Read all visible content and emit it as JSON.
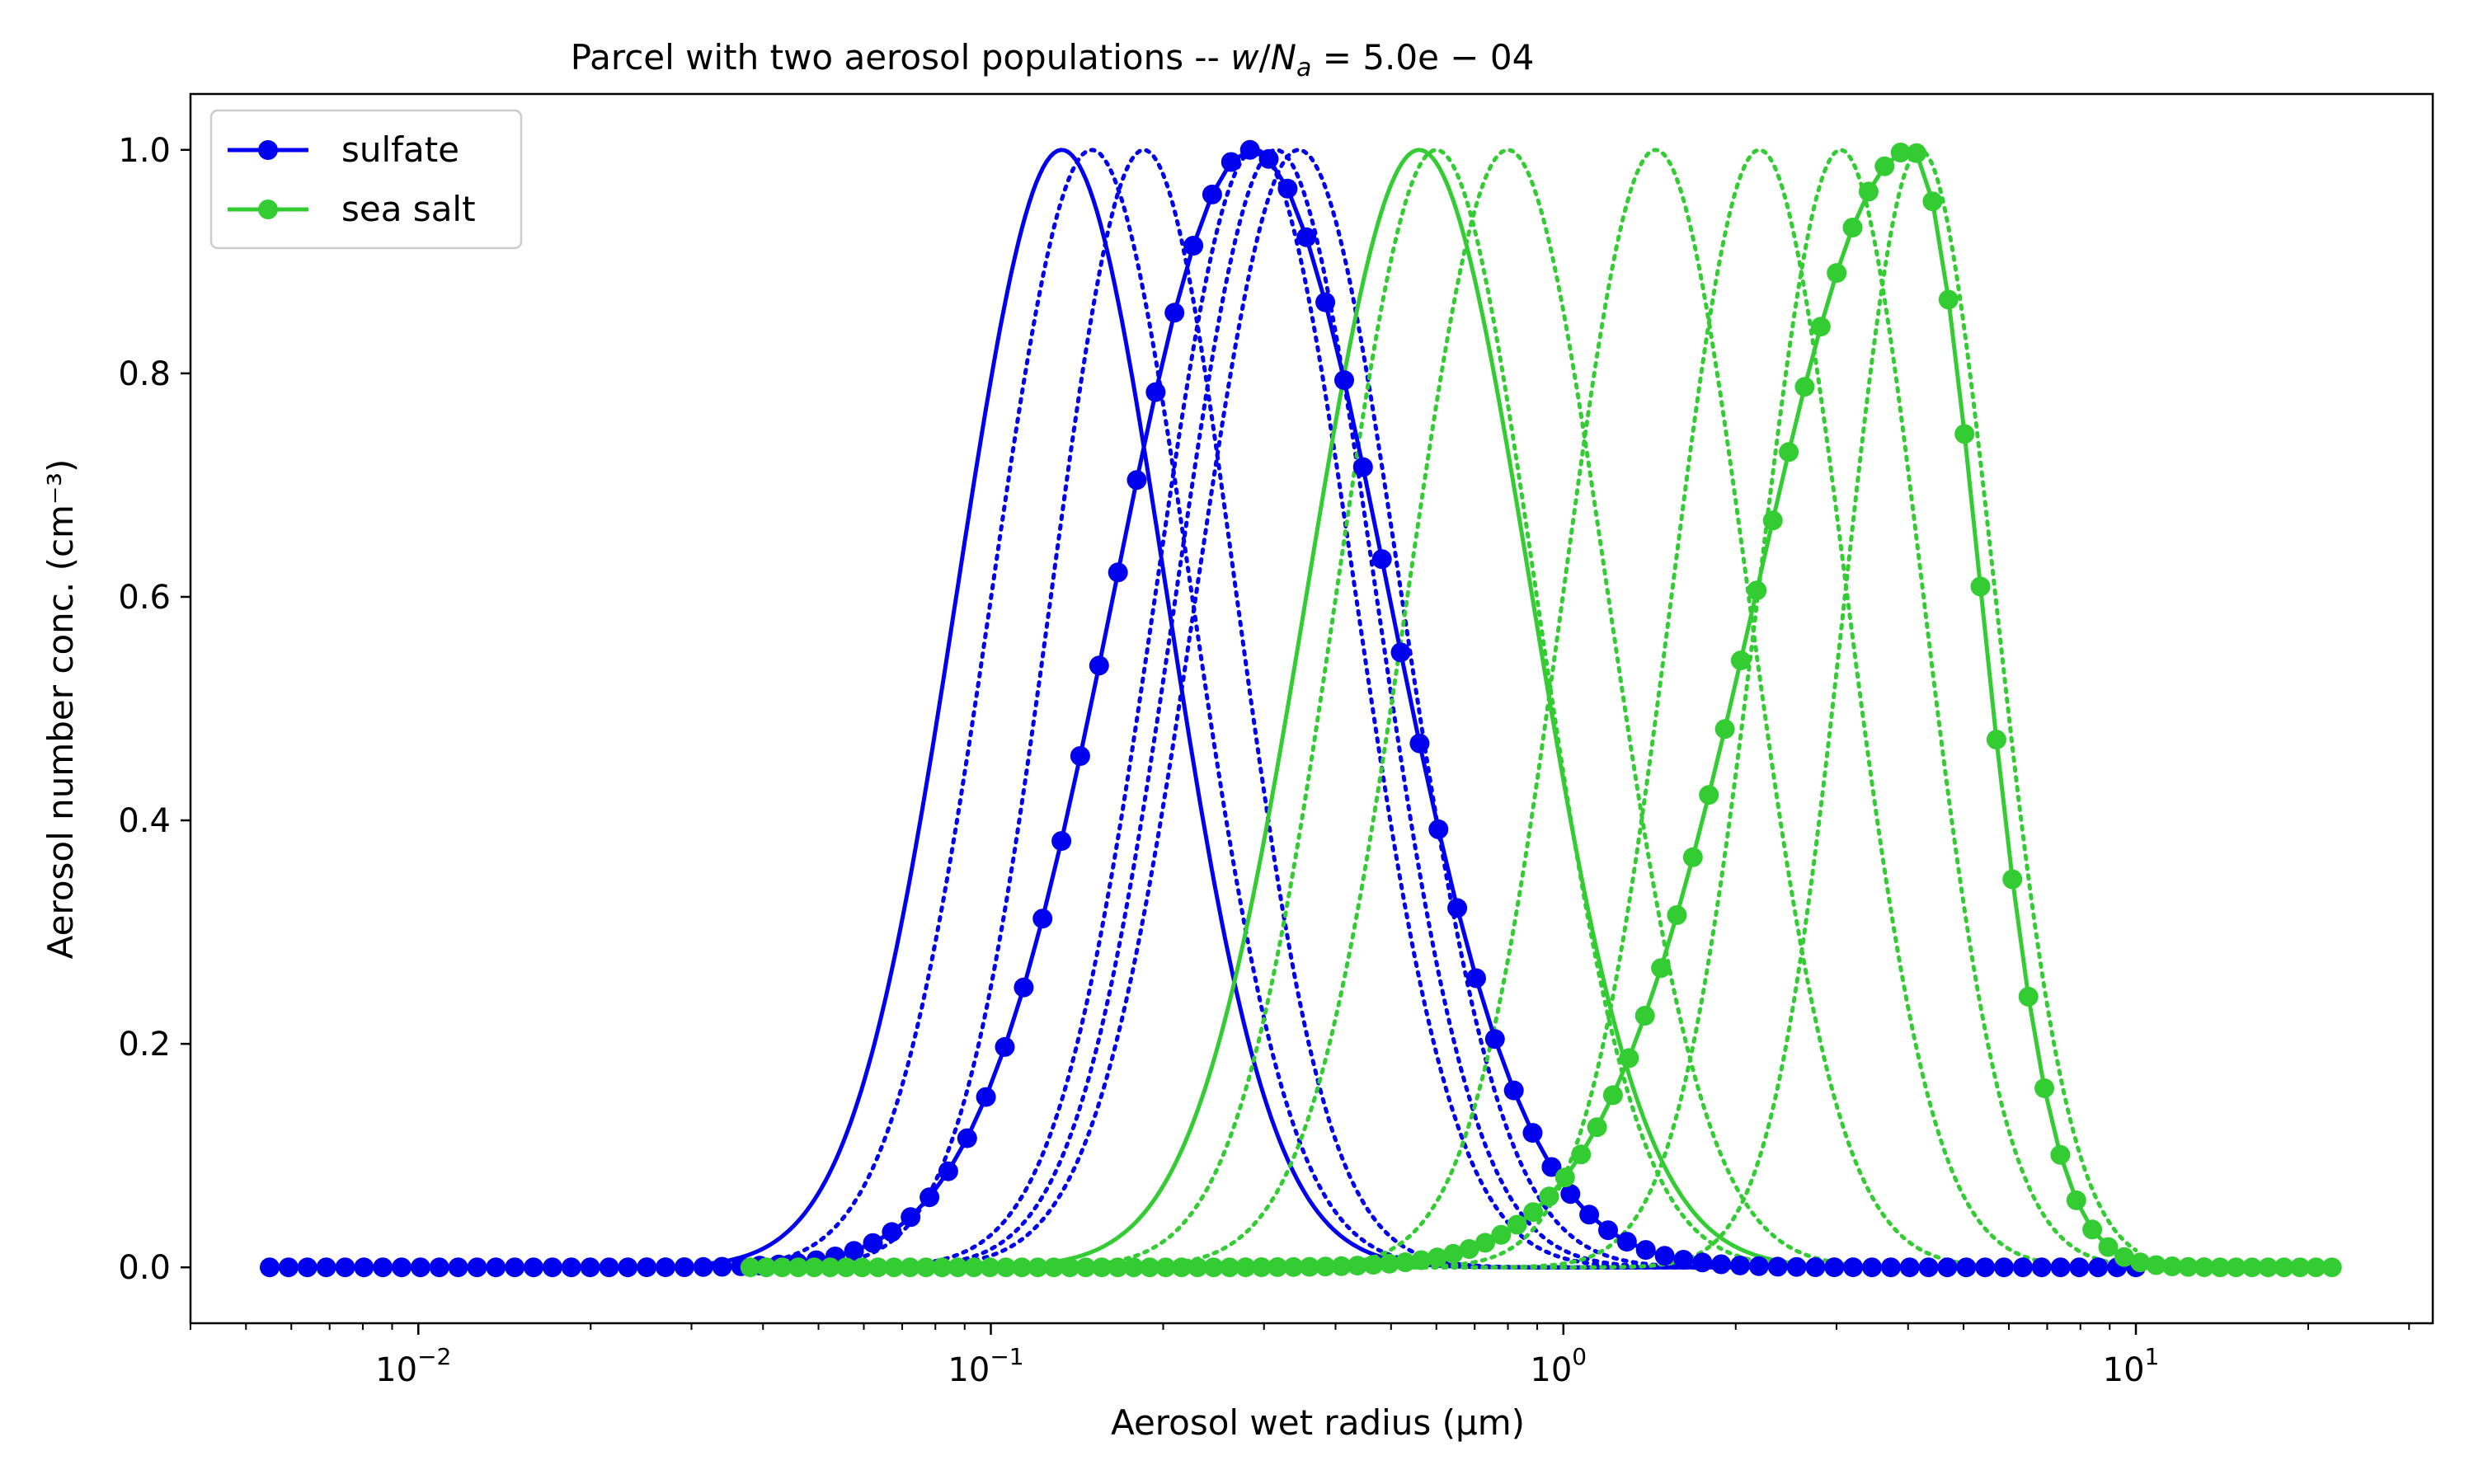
{
  "chart_data": {
    "type": "line",
    "title_prefix": "Parcel with two aerosol populations -- ",
    "title_math": {
      "var1": "w",
      "slash": "/",
      "var2": "N",
      "sub": "a",
      "rest": " = 5.0e − 04"
    },
    "xlabel": "Aerosol wet radius (μm)",
    "ylabel": "Aerosol number conc. (cm⁻³)",
    "xscale": "log",
    "xlim": [
      0.004,
      33
    ],
    "ylim": [
      -0.05,
      1.05
    ],
    "yticks": [
      0.0,
      0.2,
      0.4,
      0.6,
      0.8,
      1.0
    ],
    "ytick_labels": [
      "0.0",
      "0.2",
      "0.4",
      "0.6",
      "0.8",
      "1.0"
    ],
    "xticks": [
      {
        "value": 0.01,
        "base": "10",
        "exp": "−2"
      },
      {
        "value": 0.1,
        "base": "10",
        "exp": "−1"
      },
      {
        "value": 1,
        "base": "10",
        "exp": "0"
      },
      {
        "value": 10,
        "base": "10",
        "exp": "1"
      }
    ],
    "legend": {
      "position": "top-left"
    },
    "series": [
      {
        "name": "sulfate",
        "color": "#0000ee",
        "style": "solid-markers",
        "peak_x": 0.285,
        "sigma": 0.55,
        "tail": 0.0,
        "xmin": 0.0055,
        "xmax": 10.0,
        "points": 100
      },
      {
        "name": "sea salt",
        "color": "#33cc33",
        "style": "solid-markers",
        "peak_x": 4.05,
        "sigma": 0.62,
        "sigma_right": 0.28,
        "xmin": 0.038,
        "xmax": 22,
        "points": 100
      }
    ],
    "unlabeled_lines": [
      {
        "group": "sulfate",
        "color": "#0000ee",
        "style": "solid",
        "peak_x": 0.133,
        "sigma": 0.42,
        "xmin": 0.032,
        "xmax": 10
      },
      {
        "group": "sulfate",
        "color": "#0000ee",
        "style": "dotted",
        "peak_x": 0.15,
        "sigma": 0.4,
        "xmin": 0.032,
        "xmax": 10
      },
      {
        "group": "sulfate",
        "color": "#0000ee",
        "style": "dotted",
        "peak_x": 0.185,
        "sigma": 0.37,
        "xmin": 0.032,
        "xmax": 10
      },
      {
        "group": "sulfate",
        "color": "#0000ee",
        "style": "dotted",
        "peak_x": 0.29,
        "sigma": 0.4,
        "xmin": 0.032,
        "xmax": 10
      },
      {
        "group": "sulfate",
        "color": "#0000ee",
        "style": "dotted",
        "peak_x": 0.315,
        "sigma": 0.4,
        "xmin": 0.032,
        "xmax": 10
      },
      {
        "group": "sulfate",
        "color": "#0000ee",
        "style": "dotted",
        "peak_x": 0.345,
        "sigma": 0.41,
        "xmin": 0.032,
        "xmax": 10
      },
      {
        "group": "sea salt",
        "color": "#33cc33",
        "style": "solid",
        "peak_x": 0.56,
        "sigma": 0.45,
        "xmin": 0.038,
        "xmax": 10
      },
      {
        "group": "sea salt",
        "color": "#33cc33",
        "style": "dotted",
        "peak_x": 0.6,
        "sigma": 0.4,
        "xmin": 0.038,
        "xmax": 10
      },
      {
        "group": "sea salt",
        "color": "#33cc33",
        "style": "dotted",
        "peak_x": 0.8,
        "sigma": 0.4,
        "xmin": 0.038,
        "xmax": 10
      },
      {
        "group": "sea salt",
        "color": "#33cc33",
        "style": "dotted",
        "peak_x": 1.45,
        "sigma": 0.37,
        "xmin": 0.038,
        "xmax": 10
      },
      {
        "group": "sea salt",
        "color": "#33cc33",
        "style": "dotted",
        "peak_x": 2.2,
        "sigma": 0.35,
        "xmin": 0.038,
        "xmax": 10
      },
      {
        "group": "sea salt",
        "color": "#33cc33",
        "style": "dotted",
        "peak_x": 3.05,
        "sigma": 0.33,
        "xmin": 0.038,
        "xmax": 10
      },
      {
        "group": "sea salt",
        "color": "#33cc33",
        "style": "dotted",
        "peak_x": 4.2,
        "sigma": 0.3,
        "xmin": 0.038,
        "xmax": 10
      }
    ]
  }
}
